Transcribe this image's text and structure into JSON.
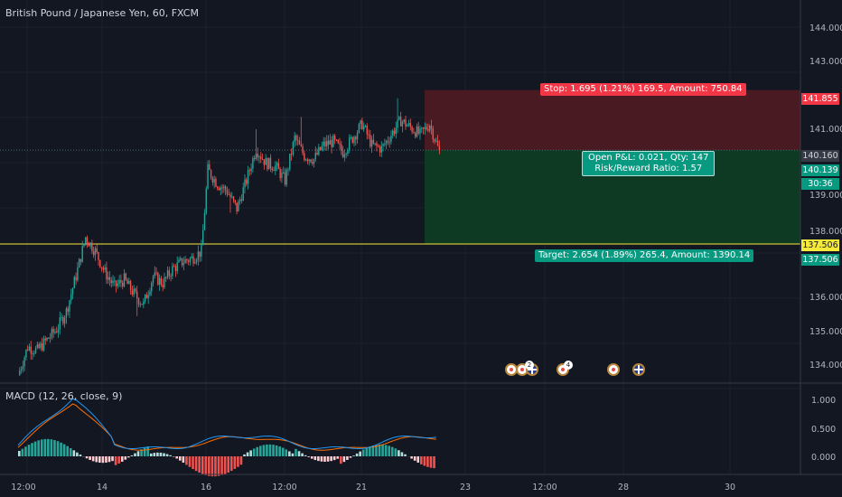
{
  "header": {
    "title": "British Pound / Japanese Yen, 60, FXCM"
  },
  "macd": {
    "title": "MACD (12, 26, close, 9)",
    "y_ticks": [
      "1.000",
      "0.500",
      "0.000"
    ],
    "colors": {
      "macd": "#2196f3",
      "signal": "#ff6d00",
      "hist_up_strong": "#26a69a",
      "hist_up_weak": "#b2dfdb",
      "hist_down_strong": "#ef5350",
      "hist_down_weak": "#ffcdd2"
    }
  },
  "price_axis": {
    "ticks": [
      "144.000",
      "143.000",
      "141.000",
      "139.000",
      "138.000",
      "136.000",
      "135.000",
      "134.000"
    ]
  },
  "time_axis": {
    "labels": [
      "12:00",
      "14",
      "16",
      "12:00",
      "21",
      "23",
      "12:00",
      "28",
      "30"
    ]
  },
  "position": {
    "stop_label": "Stop: 1.695 (1.21%) 169.5, Amount: 750.84",
    "target_label": "Target: 2.654 (1.89%) 265.4, Amount: 1390.14",
    "pnl_label": "Open P&L: 0.021, Qty: 147",
    "rr_label": "Risk/Reward Ratio: 1.57",
    "stop_price": "141.855",
    "current_price": "140.160",
    "bid_price": "140.139",
    "timer": "30:36",
    "level_price": "137.506",
    "target_price": "137.506",
    "colors": {
      "stop_zone": "#4a1a22",
      "target_zone": "#0e3a24",
      "level_line": "#f5e93a",
      "up": "#26a69a",
      "down": "#ef5350"
    }
  },
  "events": {
    "badges": [
      "2",
      "4"
    ],
    "icons": [
      "event-icon",
      "event-icon",
      "event-icon",
      "event-icon",
      "flag-icon"
    ]
  },
  "chart_data": {
    "type": "candlestick",
    "title": "British Pound / Japanese Yen, 60, FXCM",
    "ylim": [
      133.6,
      144.4
    ],
    "close_path": [
      [
        0,
        133.8
      ],
      [
        6,
        134.6
      ],
      [
        12,
        134.5
      ],
      [
        18,
        134.8
      ],
      [
        24,
        135.1
      ],
      [
        30,
        135.6
      ],
      [
        36,
        136.6
      ],
      [
        42,
        137.7
      ],
      [
        48,
        137.3
      ],
      [
        54,
        136.7
      ],
      [
        60,
        136.3
      ],
      [
        66,
        136.5
      ],
      [
        72,
        136.1
      ],
      [
        78,
        135.8
      ],
      [
        84,
        136.6
      ],
      [
        90,
        136.4
      ],
      [
        96,
        136.8
      ],
      [
        102,
        137.0
      ],
      [
        108,
        137.1
      ],
      [
        114,
        137.3
      ],
      [
        118,
        139.6
      ],
      [
        124,
        139.2
      ],
      [
        130,
        139.0
      ],
      [
        136,
        138.5
      ],
      [
        142,
        139.3
      ],
      [
        148,
        140.2
      ],
      [
        154,
        139.8
      ],
      [
        160,
        139.7
      ],
      [
        166,
        139.3
      ],
      [
        172,
        140.5
      ],
      [
        178,
        140.0
      ],
      [
        184,
        139.9
      ],
      [
        190,
        140.3
      ],
      [
        196,
        140.4
      ],
      [
        202,
        140.1
      ],
      [
        208,
        140.5
      ],
      [
        214,
        140.9
      ],
      [
        220,
        140.3
      ],
      [
        226,
        140.2
      ],
      [
        232,
        140.6
      ],
      [
        238,
        141.0
      ],
      [
        244,
        140.8
      ],
      [
        250,
        140.6
      ],
      [
        256,
        140.9
      ],
      [
        262,
        140.1
      ]
    ],
    "levels": {
      "stop": 141.855,
      "entry": 140.16,
      "target": 137.506
    }
  }
}
